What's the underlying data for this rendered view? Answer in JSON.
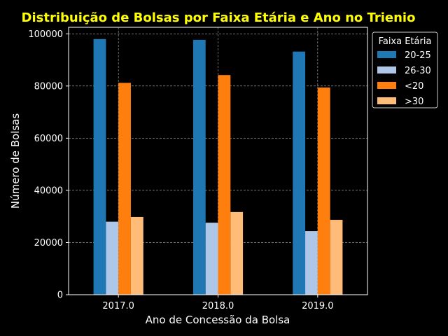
{
  "chart_data": {
    "type": "bar",
    "title": "Distribuição de Bolsas por Faixa Etária e Ano no Trienio",
    "xlabel": "Ano de Concessão da Bolsa",
    "ylabel": "Número de Bolsas",
    "categories": [
      "2017.0",
      "2018.0",
      "2019.0"
    ],
    "ylim": [
      0,
      102500
    ],
    "yticks": [
      0,
      20000,
      40000,
      60000,
      80000,
      100000
    ],
    "ytick_labels": [
      "0",
      "20000",
      "40000",
      "60000",
      "80000",
      "100000"
    ],
    "grid": true,
    "legend": {
      "title": "Faixa Etária",
      "placement": "outside-right-top"
    },
    "series": [
      {
        "name": "20-25",
        "color": "#1f77b4",
        "values": [
          98000,
          97700,
          93200
        ]
      },
      {
        "name": "26-30",
        "color": "#aec7e8",
        "values": [
          28000,
          27600,
          24400
        ]
      },
      {
        "name": "<20",
        "color": "#ff7f0e",
        "values": [
          81200,
          84200,
          79400
        ]
      },
      {
        "name": ">30",
        "color": "#ffbb78",
        "values": [
          29800,
          31700,
          28700
        ]
      }
    ]
  }
}
